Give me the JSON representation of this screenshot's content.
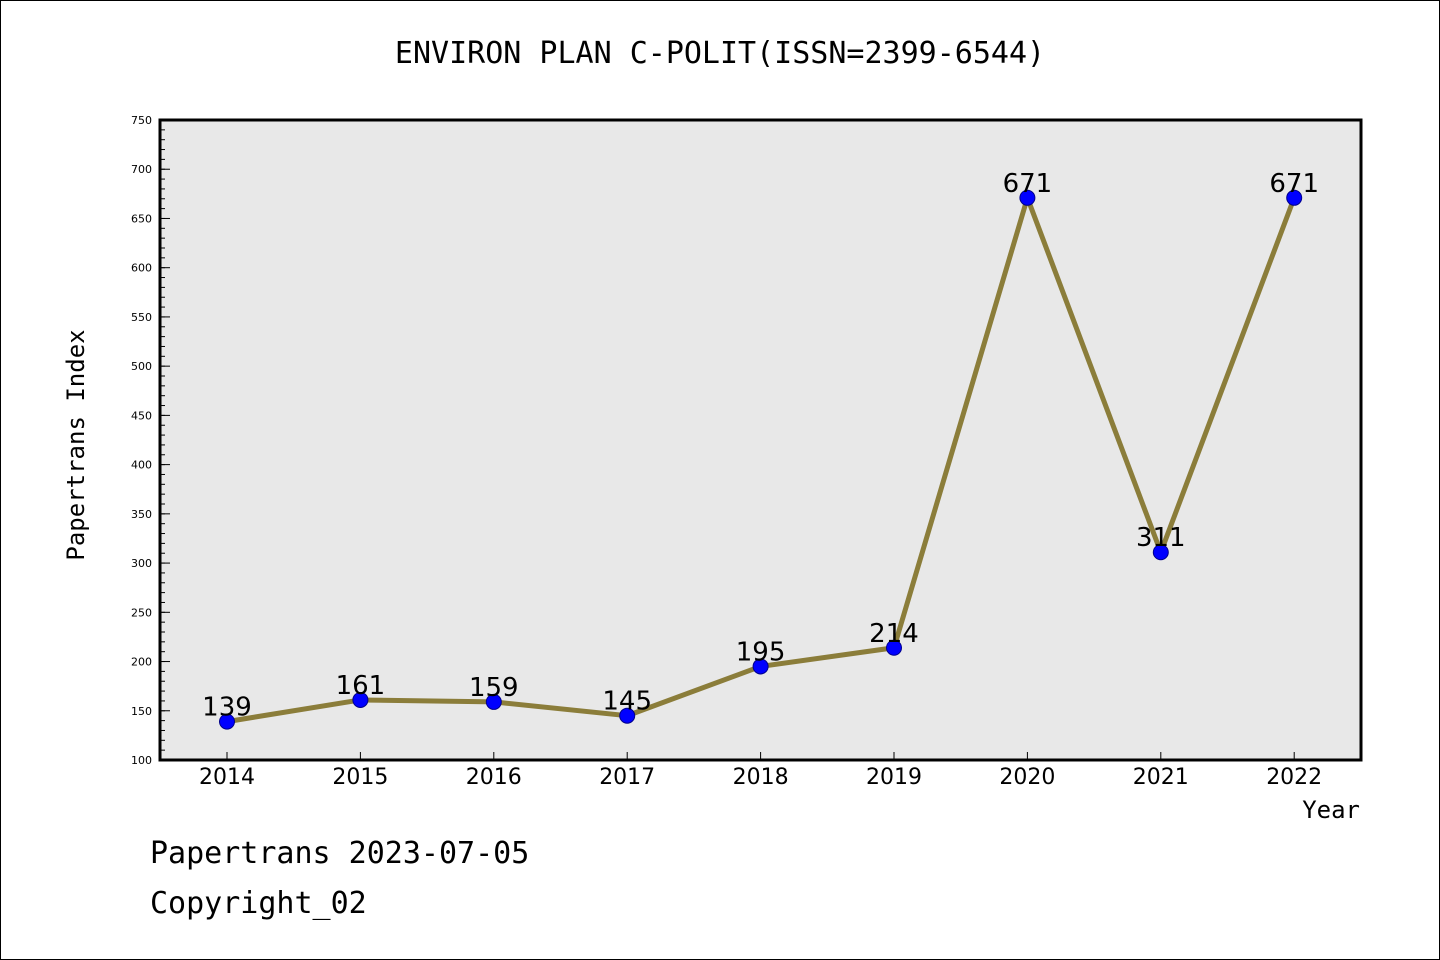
{
  "chart_data": {
    "type": "line",
    "title": "ENVIRON PLAN C-POLIT(ISSN=2399-6544)",
    "xlabel": "Year",
    "ylabel": "Papertrans Index",
    "categories": [
      "2014",
      "2015",
      "2016",
      "2017",
      "2018",
      "2019",
      "2020",
      "2021",
      "2022"
    ],
    "values": [
      139,
      161,
      159,
      145,
      195,
      214,
      671,
      311,
      671
    ],
    "ylim": [
      100,
      750
    ],
    "yticks": [
      100,
      150,
      200,
      250,
      300,
      350,
      400,
      450,
      500,
      550,
      600,
      650,
      700,
      750
    ],
    "grid": false,
    "legend": "none",
    "colors": {
      "line": "#8b7d3a",
      "marker": "#0000ff",
      "plot_background": "#e8e8e8"
    }
  },
  "footer": {
    "line1": "Papertrans 2023-07-05",
    "line2": "Copyright_02"
  }
}
